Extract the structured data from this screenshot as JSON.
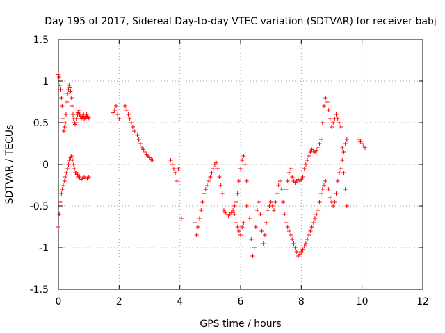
{
  "chart_data": {
    "type": "scatter",
    "title": "Day 195 of 2017, Sidereal Day-to-day VTEC variation (SDTVAR) for receiver babj",
    "xlabel": "GPS time / hours",
    "ylabel": "SDTVAR / TECUs",
    "xlim": [
      0,
      12
    ],
    "ylim": [
      -1.5,
      1.5
    ],
    "xticks": [
      0,
      2,
      4,
      6,
      8,
      10,
      12
    ],
    "yticks": [
      -1.5,
      -1,
      -0.5,
      0,
      0.5,
      1,
      1.5
    ],
    "xtick_labels": [
      "0",
      "2",
      "4",
      "6",
      "8",
      "10",
      "12"
    ],
    "ytick_labels": [
      "-1.5",
      "-1",
      "-0.5",
      "0",
      "0.5",
      "1",
      "1.5"
    ],
    "grid": true,
    "marker": "+",
    "color": "#ff0000",
    "series": [
      {
        "name": "upper branch",
        "x": [
          0.0,
          0.02,
          0.05,
          0.08,
          0.1,
          0.12,
          0.15,
          0.18,
          0.2,
          0.23,
          0.25,
          0.28,
          0.3,
          0.33,
          0.35,
          0.38,
          0.4,
          0.43,
          0.45,
          0.48,
          0.5,
          0.53,
          0.55,
          0.58,
          0.6,
          0.63,
          0.65,
          0.68,
          0.7,
          0.73,
          0.75,
          0.78,
          0.8,
          0.83,
          0.85,
          0.88,
          0.9,
          0.93,
          0.95,
          0.98,
          1.0,
          1.8,
          1.85,
          1.9,
          1.95,
          2.0,
          2.2,
          2.25,
          2.3,
          2.35,
          2.4,
          2.45,
          2.5,
          2.55,
          2.6,
          2.65,
          2.7,
          2.75,
          2.8,
          2.85,
          2.9,
          2.95,
          3.0,
          3.05,
          3.1,
          3.7,
          3.75,
          3.8,
          3.85,
          3.9
        ],
        "y": [
          1.08,
          1.05,
          0.95,
          0.9,
          0.8,
          0.7,
          0.55,
          0.4,
          0.45,
          0.5,
          0.6,
          0.75,
          0.85,
          0.9,
          0.95,
          0.92,
          0.88,
          0.8,
          0.7,
          0.6,
          0.55,
          0.5,
          0.48,
          0.5,
          0.55,
          0.6,
          0.62,
          0.65,
          0.6,
          0.58,
          0.55,
          0.56,
          0.58,
          0.6,
          0.55,
          0.56,
          0.58,
          0.6,
          0.57,
          0.55,
          0.56,
          0.62,
          0.65,
          0.7,
          0.6,
          0.55,
          0.7,
          0.65,
          0.6,
          0.55,
          0.5,
          0.45,
          0.4,
          0.38,
          0.35,
          0.3,
          0.25,
          0.2,
          0.18,
          0.15,
          0.12,
          0.1,
          0.08,
          0.06,
          0.05,
          0.05,
          0.0,
          -0.05,
          -0.1,
          -0.2
        ]
      },
      {
        "name": "lower branch",
        "x": [
          0.0,
          0.03,
          0.06,
          0.1,
          0.13,
          0.16,
          0.2,
          0.23,
          0.26,
          0.3,
          0.33,
          0.36,
          0.4,
          0.43,
          0.46,
          0.5,
          0.53,
          0.56,
          0.6,
          0.63,
          0.66,
          0.7,
          0.75,
          0.8,
          0.85,
          0.9,
          0.95,
          1.0,
          3.95,
          4.05,
          4.5,
          4.55,
          4.6,
          4.65,
          4.7,
          4.75,
          4.8,
          4.85,
          4.9,
          4.95,
          5.0,
          5.05,
          5.1,
          5.15,
          5.2,
          5.25,
          5.3,
          5.35,
          5.4,
          5.45,
          5.5,
          5.55,
          5.6,
          5.65,
          5.7,
          5.75,
          5.8,
          5.85,
          5.9,
          5.95,
          6.0,
          6.05,
          6.1,
          6.15,
          6.2
        ],
        "y": [
          -0.75,
          -0.6,
          -0.45,
          -0.35,
          -0.3,
          -0.25,
          -0.2,
          -0.15,
          -0.1,
          -0.05,
          0.0,
          0.05,
          0.08,
          0.1,
          0.05,
          0.0,
          -0.05,
          -0.1,
          -0.1,
          -0.12,
          -0.15,
          -0.15,
          -0.18,
          -0.17,
          -0.15,
          -0.16,
          -0.17,
          -0.15,
          -0.05,
          -0.65,
          -0.7,
          -0.85,
          -0.75,
          -0.65,
          -0.55,
          -0.45,
          -0.35,
          -0.3,
          -0.25,
          -0.2,
          -0.15,
          -0.1,
          -0.05,
          0.0,
          0.02,
          -0.05,
          -0.15,
          -0.25,
          -0.35,
          -0.55,
          -0.58,
          -0.6,
          -0.62,
          -0.6,
          -0.58,
          -0.55,
          -0.5,
          -0.45,
          -0.35,
          -0.2,
          -0.05,
          0.05,
          0.1,
          0.0,
          -0.2
        ]
      },
      {
        "name": "central cluster",
        "x": [
          5.8,
          5.85,
          5.9,
          5.95,
          6.0,
          6.05,
          6.1,
          6.2,
          6.3,
          6.35,
          6.4,
          6.45,
          6.5,
          6.55,
          6.6,
          6.65,
          6.7,
          6.75,
          6.8,
          6.85,
          6.9,
          6.95,
          7.0,
          7.05,
          7.1,
          7.15,
          7.2,
          7.25,
          7.3,
          7.35,
          7.4,
          7.45,
          7.5,
          7.55,
          7.6,
          7.65,
          7.7,
          7.75,
          7.8,
          7.85,
          7.9,
          7.95,
          8.0,
          8.05,
          8.1,
          8.15,
          8.2,
          8.25,
          8.3,
          8.35,
          8.4,
          8.45,
          8.5,
          8.55,
          8.6,
          8.65,
          8.7,
          8.75,
          8.8
        ],
        "y": [
          -0.6,
          -0.7,
          -0.75,
          -0.8,
          -0.85,
          -0.75,
          -0.7,
          -0.5,
          -0.65,
          -0.9,
          -1.1,
          -1.0,
          -0.75,
          -0.55,
          -0.45,
          -0.6,
          -0.8,
          -0.95,
          -0.85,
          -0.7,
          -0.55,
          -0.5,
          -0.45,
          -0.5,
          -0.55,
          -0.45,
          -0.35,
          -0.25,
          -0.2,
          -0.3,
          -0.45,
          -0.6,
          -0.7,
          -0.75,
          -0.8,
          -0.85,
          -0.9,
          -0.95,
          -1.0,
          -1.05,
          -1.1,
          -1.08,
          -1.05,
          -1.02,
          -0.98,
          -0.95,
          -0.9,
          -0.85,
          -0.8,
          -0.75,
          -0.7,
          -0.65,
          -0.6,
          -0.55,
          -0.45,
          -0.35,
          -0.3,
          -0.25,
          -0.2
        ]
      },
      {
        "name": "right cluster",
        "x": [
          7.5,
          7.55,
          7.6,
          7.65,
          7.7,
          7.75,
          7.8,
          7.85,
          7.9,
          7.95,
          8.0,
          8.05,
          8.1,
          8.15,
          8.2,
          8.25,
          8.3,
          8.35,
          8.4,
          8.45,
          8.5,
          8.55,
          8.6,
          8.65,
          8.7,
          8.75,
          8.8,
          8.85,
          8.9,
          8.95,
          9.0,
          9.05,
          9.1,
          9.15,
          9.2,
          9.25,
          9.3,
          9.35,
          9.4,
          9.45,
          9.5,
          9.9,
          9.95,
          10.0,
          10.05,
          10.1
        ],
        "y": [
          -0.3,
          -0.2,
          -0.1,
          -0.05,
          -0.15,
          -0.2,
          -0.22,
          -0.2,
          -0.18,
          -0.2,
          -0.18,
          -0.15,
          -0.05,
          0.0,
          0.05,
          0.1,
          0.15,
          0.18,
          0.16,
          0.15,
          0.17,
          0.2,
          0.25,
          0.3,
          0.5,
          0.7,
          0.8,
          0.75,
          0.65,
          0.55,
          0.45,
          0.5,
          0.55,
          0.6,
          0.55,
          0.5,
          0.45,
          0.2,
          -0.1,
          -0.3,
          -0.5,
          0.3,
          0.28,
          0.25,
          0.22,
          0.2
        ]
      },
      {
        "name": "late lower branch",
        "x": [
          8.9,
          8.95,
          9.0,
          9.05,
          9.1,
          9.15,
          9.2,
          9.25,
          9.3,
          9.35,
          9.4,
          9.45,
          9.5
        ],
        "y": [
          -0.3,
          -0.4,
          -0.45,
          -0.5,
          -0.45,
          -0.35,
          -0.2,
          -0.1,
          -0.05,
          0.05,
          0.15,
          0.25,
          0.3
        ]
      }
    ]
  }
}
